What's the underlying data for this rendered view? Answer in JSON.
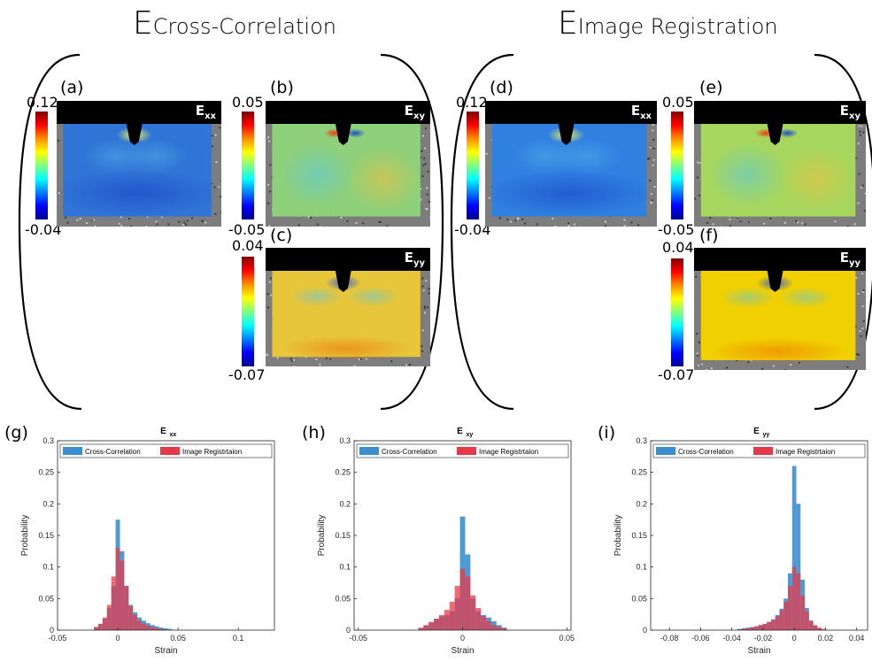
{
  "header": {
    "left": {
      "main": "E",
      "sub": "Cross-Correlation"
    },
    "right": {
      "main": "E",
      "sub": "Image Registration"
    }
  },
  "maps": [
    {
      "id": "a",
      "label": "(a)",
      "comp": "xx",
      "cmax": "0.12",
      "cmin": "-0.04",
      "bg": "#2f74d6",
      "field": "exx"
    },
    {
      "id": "b",
      "label": "(b)",
      "comp": "xy",
      "cmax": "0.05",
      "cmin": "-0.05",
      "bg": "#8fd07a",
      "field": "exy"
    },
    {
      "id": "c",
      "label": "(c)",
      "comp": "yy",
      "cmax": "0.04",
      "cmin": "-0.07",
      "bg": "#e7c63a",
      "field": "eyy"
    },
    {
      "id": "d",
      "label": "(d)",
      "comp": "xx",
      "cmax": "0.12",
      "cmin": "-0.04",
      "bg": "#2f80e0",
      "field": "exx"
    },
    {
      "id": "e",
      "label": "(e)",
      "comp": "xy",
      "cmax": "0.05",
      "cmin": "-0.05",
      "bg": "#a6d65e",
      "field": "exy"
    },
    {
      "id": "f",
      "label": "(f)",
      "comp": "yy",
      "cmax": "0.04",
      "cmin": "-0.07",
      "bg": "#f0d000",
      "field": "eyy"
    }
  ],
  "colors": {
    "cross": "#3b8fcf",
    "image": "#e5394a",
    "overlap": "#b0385a"
  },
  "chart_data": [
    {
      "type": "bar",
      "panel": "(g)",
      "title": "E",
      "title_sub": "xx",
      "xlabel": "Strain",
      "ylabel": "Probability",
      "xlim": [
        -0.05,
        0.13
      ],
      "ylim": [
        0,
        0.3
      ],
      "xticks": [
        {
          "v": -0.05,
          "t": "-0.05"
        },
        {
          "v": 0,
          "t": "0"
        },
        {
          "v": 0.05,
          "t": "0.05"
        },
        {
          "v": 0.1,
          "t": "0.1"
        }
      ],
      "yticks": [
        {
          "v": 0,
          "t": "0"
        },
        {
          "v": 0.05,
          "t": "0.05"
        },
        {
          "v": 0.1,
          "t": "0.1"
        },
        {
          "v": 0.15,
          "t": "0.15"
        },
        {
          "v": 0.2,
          "t": "0.2"
        },
        {
          "v": 0.25,
          "t": "0.25"
        },
        {
          "v": 0.3,
          "t": "0.3"
        }
      ],
      "bin_width": 0.0036,
      "series": [
        {
          "name": "Cross-Correlation",
          "centers": [
            -0.018,
            -0.0144,
            -0.0108,
            -0.0072,
            -0.0036,
            0,
            0.0036,
            0.0072,
            0.0108,
            0.0144,
            0.018,
            0.0216,
            0.0252,
            0.0288,
            0.0324,
            0.036,
            0.0396,
            0.0432
          ],
          "values": [
            0.005,
            0.01,
            0.018,
            0.035,
            0.07,
            0.175,
            0.125,
            0.07,
            0.04,
            0.028,
            0.02,
            0.015,
            0.011,
            0.008,
            0.006,
            0.004,
            0.003,
            0.002
          ]
        },
        {
          "name": "Image Registrtaion",
          "centers": [
            -0.018,
            -0.0144,
            -0.0108,
            -0.0072,
            -0.0036,
            0,
            0.0036,
            0.0072,
            0.0108,
            0.0144,
            0.018,
            0.0216,
            0.0252,
            0.0288,
            0.0324,
            0.036,
            0.0396
          ],
          "values": [
            0.005,
            0.01,
            0.02,
            0.04,
            0.085,
            0.13,
            0.11,
            0.07,
            0.038,
            0.024,
            0.015,
            0.01,
            0.007,
            0.005,
            0.003,
            0.002,
            0.001
          ]
        }
      ]
    },
    {
      "type": "bar",
      "panel": "(h)",
      "title": "E",
      "title_sub": "xy",
      "xlabel": "Strain",
      "ylabel": "Probability",
      "xlim": [
        -0.052,
        0.052
      ],
      "ylim": [
        0,
        0.3
      ],
      "xticks": [
        {
          "v": -0.05,
          "t": "-0.05"
        },
        {
          "v": 0,
          "t": "0"
        },
        {
          "v": 0.05,
          "t": "0.05"
        }
      ],
      "yticks": [
        {
          "v": 0,
          "t": "0"
        },
        {
          "v": 0.05,
          "t": "0.05"
        },
        {
          "v": 0.1,
          "t": "0.1"
        },
        {
          "v": 0.15,
          "t": "0.15"
        },
        {
          "v": 0.2,
          "t": "0.2"
        },
        {
          "v": 0.25,
          "t": "0.25"
        },
        {
          "v": 0.3,
          "t": "0.3"
        }
      ],
      "bin_width": 0.0025,
      "series": [
        {
          "name": "Cross-Correlation",
          "centers": [
            -0.02,
            -0.0175,
            -0.015,
            -0.0125,
            -0.01,
            -0.0075,
            -0.005,
            -0.0025,
            0,
            0.0025,
            0.005,
            0.0075,
            0.01,
            0.0125,
            0.015,
            0.0175,
            0.02
          ],
          "values": [
            0.003,
            0.007,
            0.012,
            0.018,
            0.022,
            0.024,
            0.03,
            0.05,
            0.18,
            0.12,
            0.05,
            0.03,
            0.024,
            0.02,
            0.014,
            0.008,
            0.004
          ]
        },
        {
          "name": "Image Registrtaion",
          "centers": [
            -0.02,
            -0.0175,
            -0.015,
            -0.0125,
            -0.01,
            -0.0075,
            -0.005,
            -0.0025,
            0,
            0.0025,
            0.005,
            0.0075,
            0.01,
            0.0125,
            0.015,
            0.0175,
            0.02
          ],
          "values": [
            0.004,
            0.008,
            0.013,
            0.018,
            0.024,
            0.032,
            0.045,
            0.07,
            0.097,
            0.085,
            0.055,
            0.035,
            0.022,
            0.014,
            0.008,
            0.005,
            0.003
          ]
        }
      ]
    },
    {
      "type": "bar",
      "panel": "(i)",
      "title": "E",
      "title_sub": "yy",
      "xlabel": "Strain",
      "ylabel": "Probability",
      "xlim": [
        -0.092,
        0.047
      ],
      "ylim": [
        0,
        0.3
      ],
      "xticks": [
        {
          "v": -0.08,
          "t": "-0.08"
        },
        {
          "v": -0.06,
          "t": "-0.06"
        },
        {
          "v": -0.04,
          "t": "-0.04"
        },
        {
          "v": -0.02,
          "t": "-0.02"
        },
        {
          "v": 0,
          "t": "0"
        },
        {
          "v": 0.02,
          "t": "0.02"
        },
        {
          "v": 0.04,
          "t": "0.04"
        }
      ],
      "yticks": [
        {
          "v": 0,
          "t": "0"
        },
        {
          "v": 0.05,
          "t": "0.05"
        },
        {
          "v": 0.1,
          "t": "0.1"
        },
        {
          "v": 0.15,
          "t": "0.15"
        },
        {
          "v": 0.2,
          "t": "0.2"
        },
        {
          "v": 0.25,
          "t": "0.25"
        },
        {
          "v": 0.3,
          "t": "0.3"
        }
      ],
      "bin_width": 0.0027,
      "series": [
        {
          "name": "Cross-Correlation",
          "centers": [
            -0.0351,
            -0.0324,
            -0.0297,
            -0.027,
            -0.0243,
            -0.0216,
            -0.0189,
            -0.0162,
            -0.0135,
            -0.0108,
            -0.0081,
            -0.0054,
            -0.0027,
            0,
            0.0027,
            0.0054,
            0.0081,
            0.0108,
            0.0135,
            0.0162,
            0.0189
          ],
          "values": [
            0.002,
            0.003,
            0.004,
            0.005,
            0.006,
            0.008,
            0.01,
            0.013,
            0.017,
            0.024,
            0.034,
            0.05,
            0.09,
            0.26,
            0.2,
            0.08,
            0.035,
            0.015,
            0.007,
            0.003,
            0.001
          ]
        },
        {
          "name": "Image Registrtaion",
          "centers": [
            -0.0351,
            -0.0324,
            -0.0297,
            -0.027,
            -0.0243,
            -0.0216,
            -0.0189,
            -0.0162,
            -0.0135,
            -0.0108,
            -0.0081,
            -0.0054,
            -0.0027,
            0,
            0.0027,
            0.0054,
            0.0081,
            0.0108,
            0.0135,
            0.0162,
            0.0189
          ],
          "values": [
            0.001,
            0.002,
            0.003,
            0.004,
            0.006,
            0.008,
            0.01,
            0.013,
            0.016,
            0.022,
            0.032,
            0.045,
            0.07,
            0.1,
            0.09,
            0.055,
            0.03,
            0.015,
            0.008,
            0.004,
            0.002
          ]
        }
      ]
    }
  ]
}
